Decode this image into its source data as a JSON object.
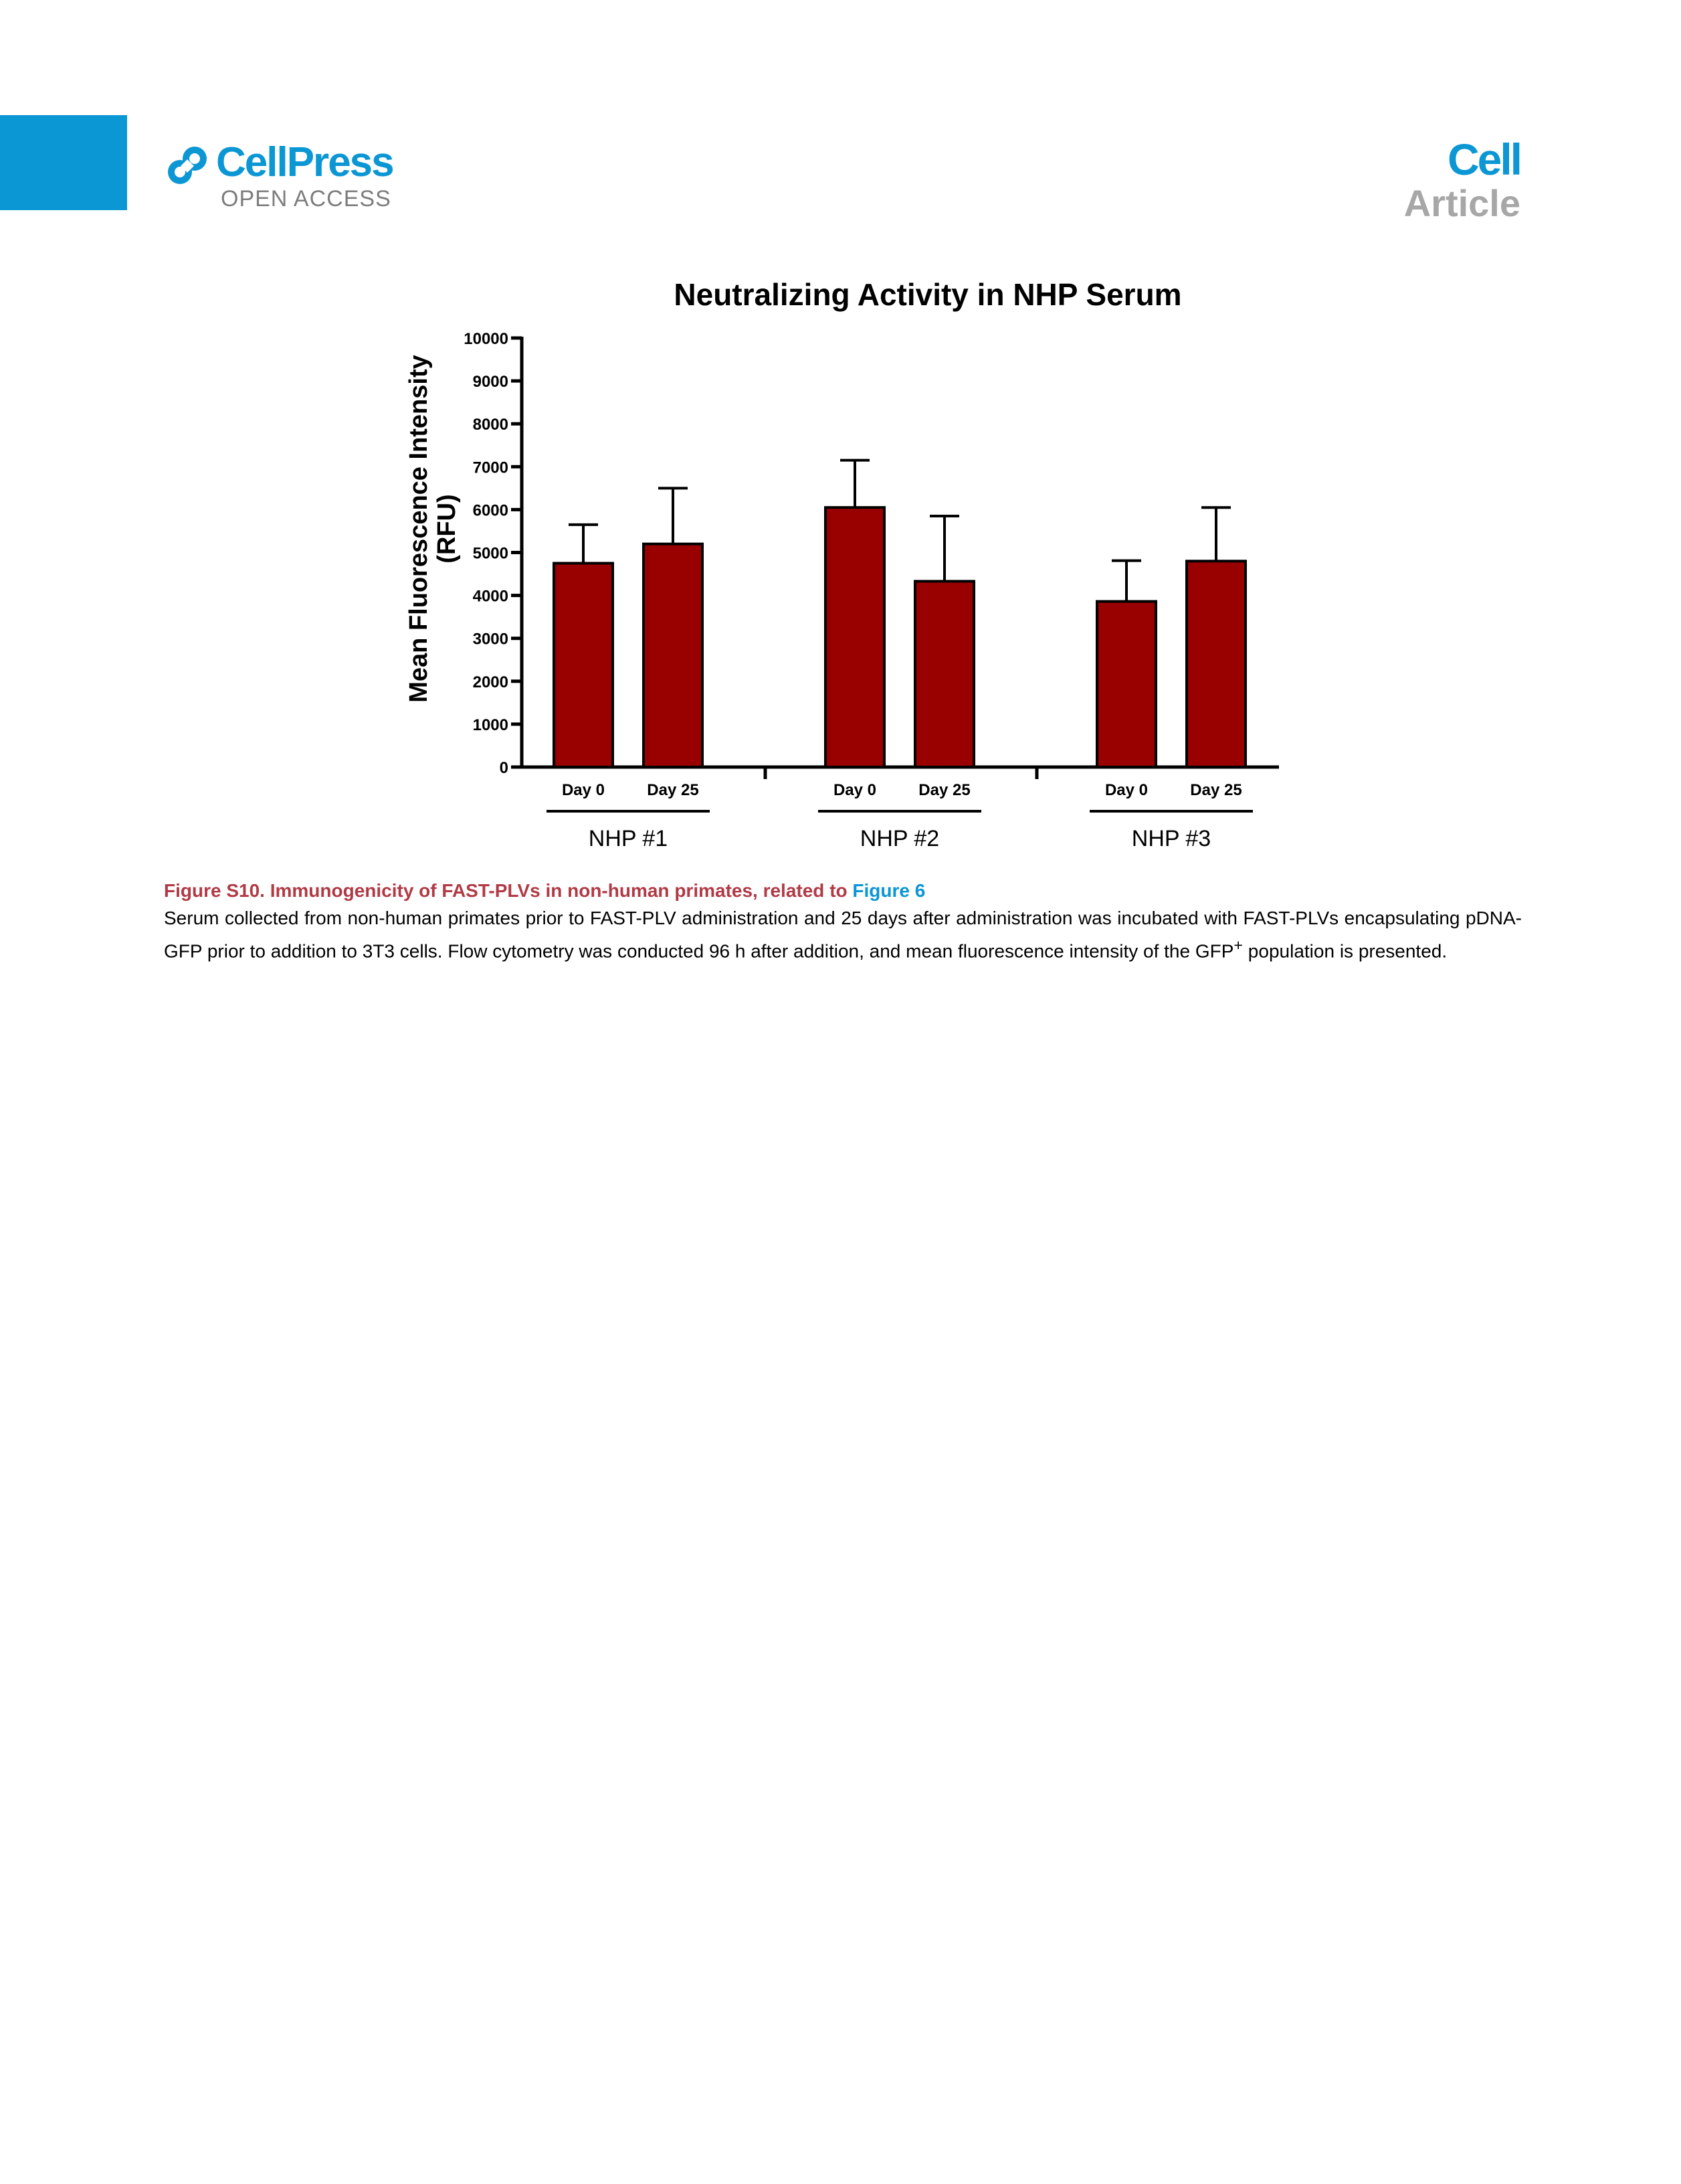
{
  "header": {
    "publisher": "CellPress",
    "open_access": "OPEN ACCESS",
    "journal": "Cell",
    "article_type": "Article"
  },
  "colors": {
    "brand_blue": "#0b96d4",
    "caption_red": "#b13a45",
    "bar_fill": "#990000",
    "article_gray": "#a7a7a7"
  },
  "chart_data": {
    "type": "bar",
    "title": "Neutralizing Activity in NHP Serum",
    "ylabel_line1": "Mean Fluorescence Intensity",
    "ylabel_line2": "(RFU)",
    "xlabel": "",
    "ylim": [
      0,
      10000
    ],
    "yticks": [
      0,
      1000,
      2000,
      3000,
      4000,
      5000,
      6000,
      7000,
      8000,
      9000,
      10000
    ],
    "groups": [
      {
        "name": "NHP #1",
        "bars": [
          {
            "label": "Day 0",
            "value": 4750,
            "error": 900
          },
          {
            "label": "Day 25",
            "value": 5200,
            "error": 1300
          }
        ]
      },
      {
        "name": "NHP #2",
        "bars": [
          {
            "label": "Day 0",
            "value": 6050,
            "error": 1100
          },
          {
            "label": "Day 25",
            "value": 4330,
            "error": 1520
          }
        ]
      },
      {
        "name": "NHP #3",
        "bars": [
          {
            "label": "Day 0",
            "value": 3860,
            "error": 950
          },
          {
            "label": "Day 25",
            "value": 4800,
            "error": 1250
          }
        ]
      }
    ],
    "grid": false,
    "legend": "none"
  },
  "caption": {
    "title": "Figure S10.  Immunogenicity of FAST-PLVs in non-human primates, related to ",
    "link": "Figure 6",
    "body_pre": "Serum collected from non-human primates prior to FAST-PLV administration and 25 days after administration was incubated with FAST-PLVs encapsulating pDNA-GFP prior to addition to 3T3 cells. Flow cytometry was conducted 96 h after addition, and mean fluorescence intensity of the GFP",
    "superscript": "+",
    "body_post": " population is presented."
  }
}
